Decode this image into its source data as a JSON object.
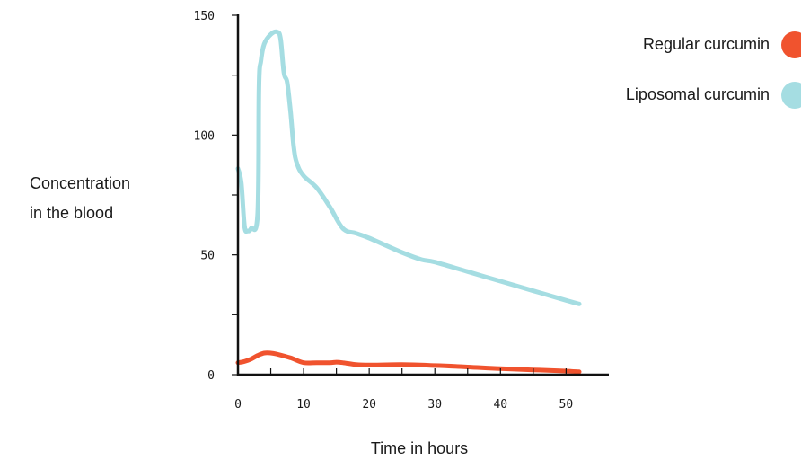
{
  "chart_data": {
    "type": "line",
    "title": "",
    "xlabel": "Time in hours",
    "ylabel_lines": [
      "Concentration",
      "in the blood"
    ],
    "xlim": [
      0,
      52
    ],
    "ylim": [
      0,
      150
    ],
    "x_ticks": [
      0,
      10,
      20,
      30,
      40,
      50
    ],
    "x_minor_ticks": [
      5,
      15,
      25,
      35,
      45
    ],
    "y_ticks": [
      0,
      50,
      100,
      150
    ],
    "y_minor_ticks": [
      25,
      75,
      125
    ],
    "grid": false,
    "legend_position": "top-right",
    "series": [
      {
        "name": "Regular curcumin",
        "color": "#f0532e",
        "points": [
          [
            0,
            5
          ],
          [
            1,
            5.5
          ],
          [
            2,
            6.5
          ],
          [
            3,
            8
          ],
          [
            4,
            9
          ],
          [
            5,
            9
          ],
          [
            6,
            8.5
          ],
          [
            8,
            7
          ],
          [
            10,
            5
          ],
          [
            12,
            5
          ],
          [
            14,
            5
          ],
          [
            15,
            5.2
          ],
          [
            16,
            5
          ],
          [
            18,
            4.2
          ],
          [
            20,
            4
          ],
          [
            25,
            4.2
          ],
          [
            30,
            3.8
          ],
          [
            35,
            3.2
          ],
          [
            40,
            2.5
          ],
          [
            45,
            2
          ],
          [
            50,
            1.5
          ],
          [
            52,
            1.2
          ]
        ]
      },
      {
        "name": "Liposomal curcumin",
        "color": "#a5dde2",
        "points": [
          [
            0,
            86
          ],
          [
            0.5,
            80
          ],
          [
            1,
            62
          ],
          [
            1.5,
            60
          ],
          [
            2,
            61
          ],
          [
            3,
            67
          ],
          [
            3.2,
            120
          ],
          [
            3.5,
            131
          ],
          [
            4,
            138
          ],
          [
            5,
            142
          ],
          [
            6,
            143
          ],
          [
            6.5,
            140
          ],
          [
            7,
            126
          ],
          [
            7.5,
            122
          ],
          [
            8,
            110
          ],
          [
            8.5,
            95
          ],
          [
            9,
            88
          ],
          [
            10,
            83
          ],
          [
            12,
            78
          ],
          [
            14,
            70
          ],
          [
            16,
            61
          ],
          [
            18,
            59
          ],
          [
            20,
            57
          ],
          [
            25,
            51
          ],
          [
            28,
            48
          ],
          [
            30,
            47
          ],
          [
            35,
            43
          ],
          [
            40,
            39
          ],
          [
            45,
            35
          ],
          [
            50,
            31
          ],
          [
            52,
            29.5
          ]
        ]
      }
    ]
  }
}
